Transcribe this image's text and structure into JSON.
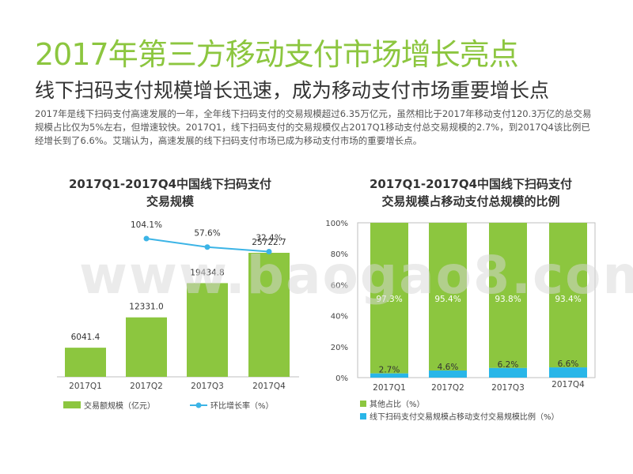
{
  "header": {
    "title": "2017年第三方移动支付市场增长亮点",
    "subtitle": "线下扫码支付规模增长迅速，成为移动支付市场重要增长点",
    "paragraph": "2017年是线下扫码支付高速发展的一年，全年线下扫码支付的交易规模超过6.35万亿元，虽然相比于2017年移动支付120.3万亿的总交易规模占比仅为5%左右，但增速较快。2017Q1，线下扫码支付的交易规模仅占2017Q1移动支付总交易规模的2.7%，到2017Q4该比例已经增长到了6.6%。艾瑞认为，高速发展的线下扫码支付市场已成为移动支付市场的重要增长点。"
  },
  "watermark": "www.baogao8.com",
  "colors": {
    "green": "#8cc63f",
    "blue": "#29b6e8",
    "line": "#3cb4e6"
  },
  "chart_data": [
    {
      "type": "bar",
      "title_line1": "2017Q1-2017Q4中国线下扫码支付",
      "title_line2": "交易规模",
      "categories": [
        "2017Q1",
        "2017Q2",
        "2017Q3",
        "2017Q4"
      ],
      "series": [
        {
          "name": "交易额规模（亿元）",
          "values": [
            6041.4,
            12331.0,
            19434.8,
            25722.7
          ],
          "labels": [
            "6041.4",
            "12331.0",
            "19434.8",
            "25722.7"
          ]
        },
        {
          "name": "环比增长率（%）",
          "type": "line",
          "values": [
            null,
            104.1,
            57.6,
            32.4
          ],
          "labels": [
            "",
            "104.1%",
            "57.6%",
            "32.4%"
          ]
        }
      ]
    },
    {
      "type": "bar",
      "stacked": true,
      "title_line1": "2017Q1-2017Q4中国线下扫码支付",
      "title_line2": "交易规模占移动支付总规模的比例",
      "categories": [
        "2017Q1",
        "2017Q2",
        "2017Q3",
        "2017Q4"
      ],
      "yticks": [
        "0%",
        "20%",
        "40%",
        "60%",
        "80%",
        "100%"
      ],
      "ylim": [
        0,
        100
      ],
      "series": [
        {
          "name": "线下扫码支付交易规模占移动支付交易规模比例（%）",
          "values": [
            2.7,
            4.6,
            6.2,
            6.6
          ],
          "labels": [
            "2.7%",
            "4.6%",
            "6.2%",
            "6.6%"
          ]
        },
        {
          "name": "其他占比（%）",
          "values": [
            97.3,
            95.4,
            93.8,
            93.4
          ],
          "labels": [
            "97.3%",
            "95.4%",
            "93.8%",
            "93.4%"
          ]
        }
      ]
    }
  ]
}
